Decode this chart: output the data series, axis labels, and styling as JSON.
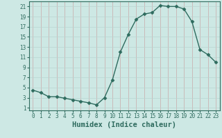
{
  "x": [
    0,
    1,
    2,
    3,
    4,
    5,
    6,
    7,
    8,
    9,
    10,
    11,
    12,
    13,
    14,
    15,
    16,
    17,
    18,
    19,
    20,
    21,
    22,
    23
  ],
  "y": [
    4.5,
    4.0,
    3.2,
    3.2,
    2.9,
    2.6,
    2.3,
    2.0,
    1.6,
    3.0,
    6.5,
    12.0,
    15.5,
    18.5,
    19.5,
    19.8,
    21.2,
    21.0,
    21.0,
    20.5,
    18.0,
    12.5,
    11.5,
    10.0
  ],
  "line_color": "#2e6b5e",
  "marker": "D",
  "marker_size": 2.5,
  "bg_color": "#cde8e4",
  "grid_color_v": "#c9a8a8",
  "grid_color_h": "#b8d4d0",
  "xlabel": "Humidex (Indice chaleur)",
  "xlabel_fontsize": 7.5,
  "ylim": [
    0.5,
    22
  ],
  "xlim": [
    -0.5,
    23.5
  ],
  "yticks": [
    1,
    3,
    5,
    7,
    9,
    11,
    13,
    15,
    17,
    19,
    21
  ],
  "xticks": [
    0,
    1,
    2,
    3,
    4,
    5,
    6,
    7,
    8,
    9,
    10,
    11,
    12,
    13,
    14,
    15,
    16,
    17,
    18,
    19,
    20,
    21,
    22,
    23
  ],
  "tick_fontsize": 5.5
}
